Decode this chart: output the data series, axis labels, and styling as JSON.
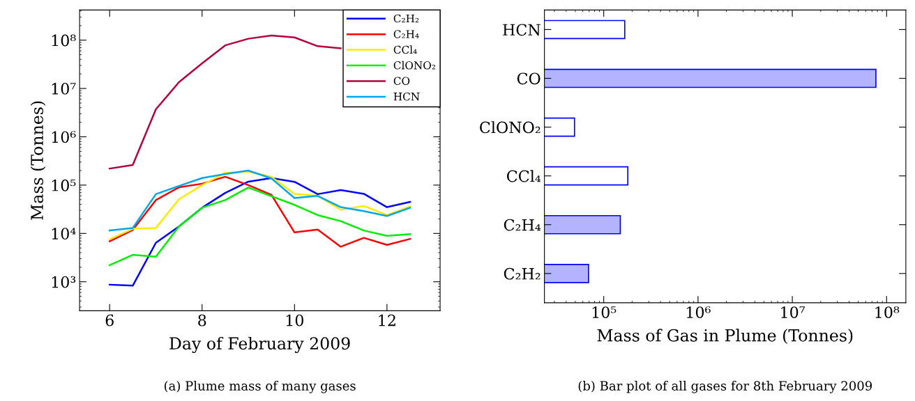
{
  "chart_data": [
    {
      "type": "line",
      "xlabel": "Day of February 2009",
      "ylabel": "Mass (Tonnes)",
      "log": "y",
      "legend": "top right",
      "grid": false,
      "x": [
        6,
        6.5,
        7,
        7.5,
        8,
        8.5,
        9,
        9.5,
        10,
        10.5,
        11,
        11.5,
        12,
        12.5
      ],
      "xlim": [
        5.35,
        13.15
      ],
      "xticks": [
        6,
        8,
        10,
        12
      ],
      "ylim": [
        251,
        420000000
      ],
      "yticks": [
        {
          "value": 1000,
          "label": "10³"
        },
        {
          "value": 10000,
          "label": "10⁴"
        },
        {
          "value": 100000,
          "label": "10⁵"
        },
        {
          "value": 1000000,
          "label": "10⁶"
        },
        {
          "value": 10000000,
          "label": "10⁷"
        },
        {
          "value": 100000000,
          "label": "10⁸"
        }
      ],
      "series": [
        {
          "name": "C₂H₂",
          "color": "#0000ff",
          "values": [
            870,
            830,
            6400,
            14000,
            34000,
            69000,
            118000,
            140000,
            117000,
            65000,
            79000,
            66000,
            35000,
            45000
          ]
        },
        {
          "name": "C₂H₄",
          "color": "#ff0000",
          "values": [
            6900,
            11800,
            49000,
            90000,
            107000,
            149000,
            100000,
            63000,
            10500,
            12000,
            5300,
            8100,
            5800,
            7700
          ]
        },
        {
          "name": "CCl₄",
          "color": "#ffea00",
          "values": [
            7600,
            12500,
            13000,
            51000,
            100000,
            180000,
            190000,
            148000,
            66000,
            60000,
            31000,
            37000,
            24000,
            36000
          ]
        },
        {
          "name": "ClONO₂",
          "color": "#00ee00",
          "values": [
            2200,
            3600,
            3300,
            14000,
            34000,
            49000,
            89000,
            59000,
            39000,
            24000,
            18000,
            11500,
            8900,
            9700
          ]
        },
        {
          "name": "CO",
          "color": "#b5003e",
          "values": [
            220000,
            260000,
            3700000,
            13500000,
            33000000,
            78000000,
            107000000,
            125000000,
            114000000,
            75000000,
            68000000,
            null,
            null,
            null
          ]
        },
        {
          "name": "HCN",
          "color": "#00a8e8",
          "values": [
            11500,
            13000,
            65000,
            96000,
            140000,
            170000,
            200000,
            138000,
            54000,
            60000,
            35000,
            29000,
            23000,
            34000
          ]
        }
      ],
      "annotations": [
        "(a) Plume mass of many gases"
      ]
    },
    {
      "type": "bar",
      "orientation": "horizontal",
      "xlabel": "Mass of Gas in Plume (Tonnes)",
      "log": "x",
      "grid": false,
      "categories": [
        "HCN",
        "CO",
        "ClONO₂",
        "CCl₄",
        "C₂H₄",
        "C₂H₂"
      ],
      "values": [
        167000,
        77000000,
        49000,
        180000,
        150000,
        69000
      ],
      "colors": [
        "#ffffff",
        "#b3b3ff",
        "#ffffff",
        "#ffffff",
        "#b3b3ff",
        "#b3b3ff"
      ],
      "xlim": [
        23500,
        160000000
      ],
      "xticks": [
        {
          "value": 100000,
          "label": "10⁵"
        },
        {
          "value": 1000000,
          "label": "10⁶"
        },
        {
          "value": 10000000,
          "label": "10⁷"
        },
        {
          "value": 100000000,
          "label": "10⁸"
        }
      ],
      "annotations": [
        "(b) Bar plot of all gases for 8th February 2009"
      ]
    }
  ]
}
